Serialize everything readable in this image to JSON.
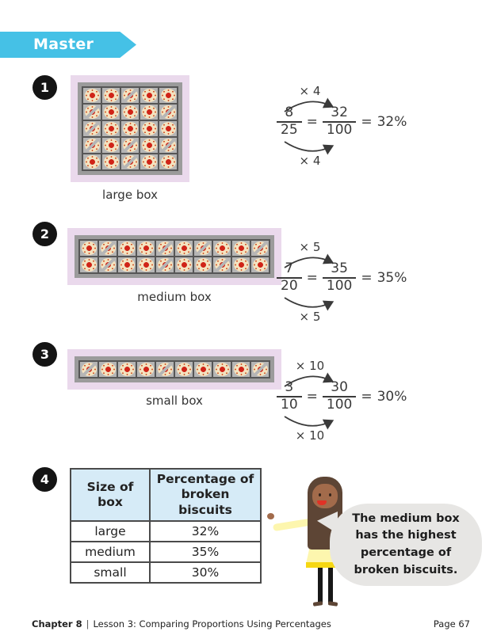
{
  "banner": {
    "label": "Master"
  },
  "badges": [
    "1",
    "2",
    "3",
    "4"
  ],
  "boxes": [
    {
      "label": "large box",
      "rows": 5,
      "cols": 5,
      "broken": [
        [
          0,
          2
        ],
        [
          1,
          0
        ],
        [
          1,
          4
        ],
        [
          2,
          0
        ],
        [
          3,
          0
        ],
        [
          3,
          2
        ],
        [
          3,
          4
        ],
        [
          4,
          2
        ]
      ]
    },
    {
      "label": "medium box",
      "rows": 2,
      "cols": 10,
      "broken": [
        [
          0,
          1
        ],
        [
          0,
          4
        ],
        [
          0,
          6
        ],
        [
          0,
          9
        ],
        [
          1,
          1
        ],
        [
          1,
          4
        ],
        [
          1,
          7
        ]
      ]
    },
    {
      "label": "small box",
      "rows": 1,
      "cols": 10,
      "broken": [
        [
          0,
          0
        ],
        [
          0,
          4
        ],
        [
          0,
          9
        ]
      ]
    }
  ],
  "workings": [
    {
      "multiplier_top": "× 4",
      "num1": "8",
      "den1": "25",
      "eq1": "=",
      "num2": "32",
      "den2": "100",
      "eq2": "=",
      "result": "32%",
      "multiplier_bottom": "× 4"
    },
    {
      "multiplier_top": "× 5",
      "num1": "7",
      "den1": "20",
      "eq1": "=",
      "num2": "35",
      "den2": "100",
      "eq2": "=",
      "result": "35%",
      "multiplier_bottom": "× 5"
    },
    {
      "multiplier_top": "× 10",
      "num1": "3",
      "den1": "10",
      "eq1": "=",
      "num2": "30",
      "den2": "100",
      "eq2": "=",
      "result": "30%",
      "multiplier_bottom": "× 10"
    }
  ],
  "table": {
    "headers": [
      "Size of box",
      "Percentage of broken biscuits"
    ],
    "rows": [
      [
        "large",
        "32%"
      ],
      [
        "medium",
        "35%"
      ],
      [
        "small",
        "30%"
      ]
    ]
  },
  "speech": {
    "text": "The medium box has the highest percentage of broken biscuits."
  },
  "footer": {
    "chapter": "Chapter 8",
    "separator": "|",
    "lesson": "Lesson 3: Comparing Proportions Using Percentages",
    "page": "Page 67"
  },
  "colors": {
    "banner_cyan": "#45c1e6",
    "box_pink": "#ead9ec",
    "tray_gray": "#9b9b9b",
    "biscuit_cream": "#f4e3c0",
    "jam_red": "#d02418",
    "table_header_blue": "#d6ebf7",
    "bubble_gray": "#e7e6e4",
    "dress_yellow": "#fdf6ae"
  }
}
